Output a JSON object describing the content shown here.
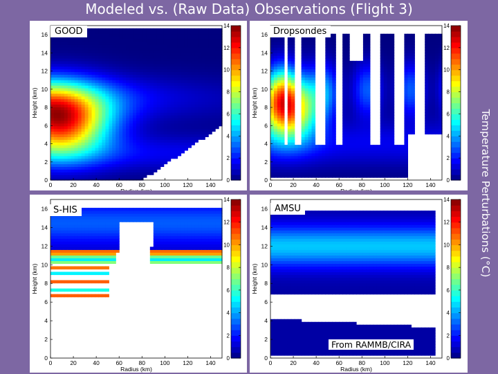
{
  "slide": {
    "title": "Modeled vs. (Raw Data) Observations (Flight 3)",
    "side_label": "Temperature Perturbations (°C)",
    "credit": "From RAMMB/CIRA"
  },
  "colormap": [
    "#00007f",
    "#0000ff",
    "#007fff",
    "#00ffff",
    "#7fff7f",
    "#ffff00",
    "#ff7f00",
    "#ff0000",
    "#7f0000"
  ],
  "chart_data": [
    {
      "name": "GOOD",
      "type": "heatmap",
      "label": "GOOD",
      "xlabel": "Radius (km)",
      "ylabel": "Height (km)",
      "xlim": [
        0,
        150
      ],
      "ylim": [
        0,
        17
      ],
      "xticks": [
        0,
        20,
        40,
        60,
        80,
        100,
        120,
        140
      ],
      "yticks": [
        0,
        2,
        4,
        6,
        8,
        10,
        12,
        14,
        16
      ],
      "colorbar": {
        "range": [
          0,
          14
        ],
        "ticks": [
          0,
          2,
          4,
          6,
          8,
          10,
          12,
          14
        ]
      },
      "warm_core": {
        "radius_km": 8,
        "height_km": 6.5,
        "peak_c": 12
      },
      "valid_mask": "surface"
    },
    {
      "name": "Dropsondes",
      "type": "heatmap",
      "label": "Dropsondes",
      "xlabel": "Radius (km)",
      "ylabel": "Height (km)",
      "xlim": [
        0,
        150
      ],
      "ylim": [
        0,
        17
      ],
      "xticks": [
        0,
        20,
        40,
        60,
        80,
        100,
        120,
        140
      ],
      "yticks": [
        0,
        2,
        4,
        6,
        8,
        10,
        12,
        14,
        16
      ],
      "colorbar": {
        "range": [
          0,
          14
        ],
        "ticks": [
          0,
          2,
          4,
          6,
          8,
          10,
          12,
          14
        ]
      },
      "warm_core": {
        "radius_km": 15,
        "height_km": 8,
        "peak_c": 11
      },
      "valid_mask": "patchy"
    },
    {
      "name": "S-HIS",
      "type": "heatmap",
      "label": "S-HIS",
      "xlabel": "Radius (km)",
      "ylabel": "Height (km)",
      "xlim": [
        0,
        150
      ],
      "ylim": [
        0,
        17
      ],
      "xticks": [
        0,
        20,
        40,
        60,
        80,
        100,
        120,
        140
      ],
      "yticks": [
        0,
        2,
        4,
        6,
        8,
        10,
        12,
        14,
        16
      ],
      "colorbar": {
        "range": [
          0,
          14
        ],
        "ticks": [
          0,
          2,
          4,
          6,
          8,
          10,
          12,
          14
        ]
      },
      "warm_core": {
        "radius_km": 30,
        "height_km": 9.5,
        "peak_c": 10
      },
      "valid_mask": "upper_and_streaks"
    },
    {
      "name": "AMSU",
      "type": "heatmap",
      "label": "AMSU",
      "xlabel": "Radius (km)",
      "ylabel": "Height (km)",
      "xlim": [
        0,
        150
      ],
      "ylim": [
        0,
        17
      ],
      "xticks": [
        0,
        20,
        40,
        60,
        80,
        100,
        120,
        140
      ],
      "yticks": [
        0,
        2,
        4,
        6,
        8,
        10,
        12,
        14,
        16
      ],
      "colorbar": {
        "range": [
          0,
          14
        ],
        "ticks": [
          0,
          2,
          4,
          6,
          8,
          10,
          12,
          14
        ]
      },
      "warm_core": {
        "radius_km": 0,
        "height_km": 12,
        "peak_c": 4
      },
      "valid_mask": "bands"
    }
  ]
}
